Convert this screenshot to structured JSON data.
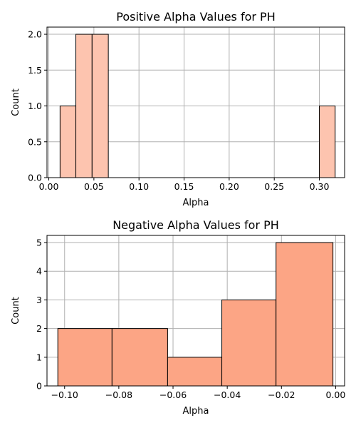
{
  "chart_data": [
    {
      "type": "bar",
      "title": "Positive Alpha Values for PH",
      "xlabel": "Alpha",
      "ylabel": "Count",
      "xlim": [
        -0.002,
        0.328
      ],
      "ylim": [
        0,
        2.1
      ],
      "xticks": [
        0.0,
        0.05,
        0.1,
        0.15,
        0.2,
        0.25,
        0.3
      ],
      "xtick_labels": [
        "0.00",
        "0.05",
        "0.10",
        "0.15",
        "0.20",
        "0.25",
        "0.30"
      ],
      "yticks": [
        0.0,
        0.5,
        1.0,
        1.5,
        2.0
      ],
      "ytick_labels": [
        "0.0",
        "0.5",
        "1.0",
        "1.5",
        "2.0"
      ],
      "grid": true,
      "color": "#fdc4af",
      "bins": [
        {
          "x0": 0.0125,
          "x1": 0.03,
          "count": 1
        },
        {
          "x0": 0.03,
          "x1": 0.048,
          "count": 2
        },
        {
          "x0": 0.048,
          "x1": 0.066,
          "count": 2
        },
        {
          "x0": 0.3,
          "x1": 0.3175,
          "count": 1
        }
      ]
    },
    {
      "type": "bar",
      "title": "Negative Alpha Values for PH",
      "xlabel": "Alpha",
      "ylabel": "Count",
      "xlim": [
        -0.1065,
        0.0033
      ],
      "ylim": [
        0,
        5.25
      ],
      "xticks": [
        -0.1,
        -0.08,
        -0.06,
        -0.04,
        -0.02,
        0.0
      ],
      "xtick_labels": [
        "−0.10",
        "−0.08",
        "−0.06",
        "−0.04",
        "−0.02",
        "0.00"
      ],
      "yticks": [
        0,
        1,
        2,
        3,
        4,
        5
      ],
      "ytick_labels": [
        "0",
        "1",
        "2",
        "3",
        "4",
        "5"
      ],
      "grid": true,
      "color": "#fca585",
      "bins": [
        {
          "x0": -0.1025,
          "x1": -0.0825,
          "count": 2
        },
        {
          "x0": -0.0825,
          "x1": -0.062,
          "count": 2
        },
        {
          "x0": -0.062,
          "x1": -0.042,
          "count": 1
        },
        {
          "x0": -0.042,
          "x1": -0.022,
          "count": 3
        },
        {
          "x0": -0.022,
          "x1": -0.001,
          "count": 5
        }
      ]
    }
  ]
}
